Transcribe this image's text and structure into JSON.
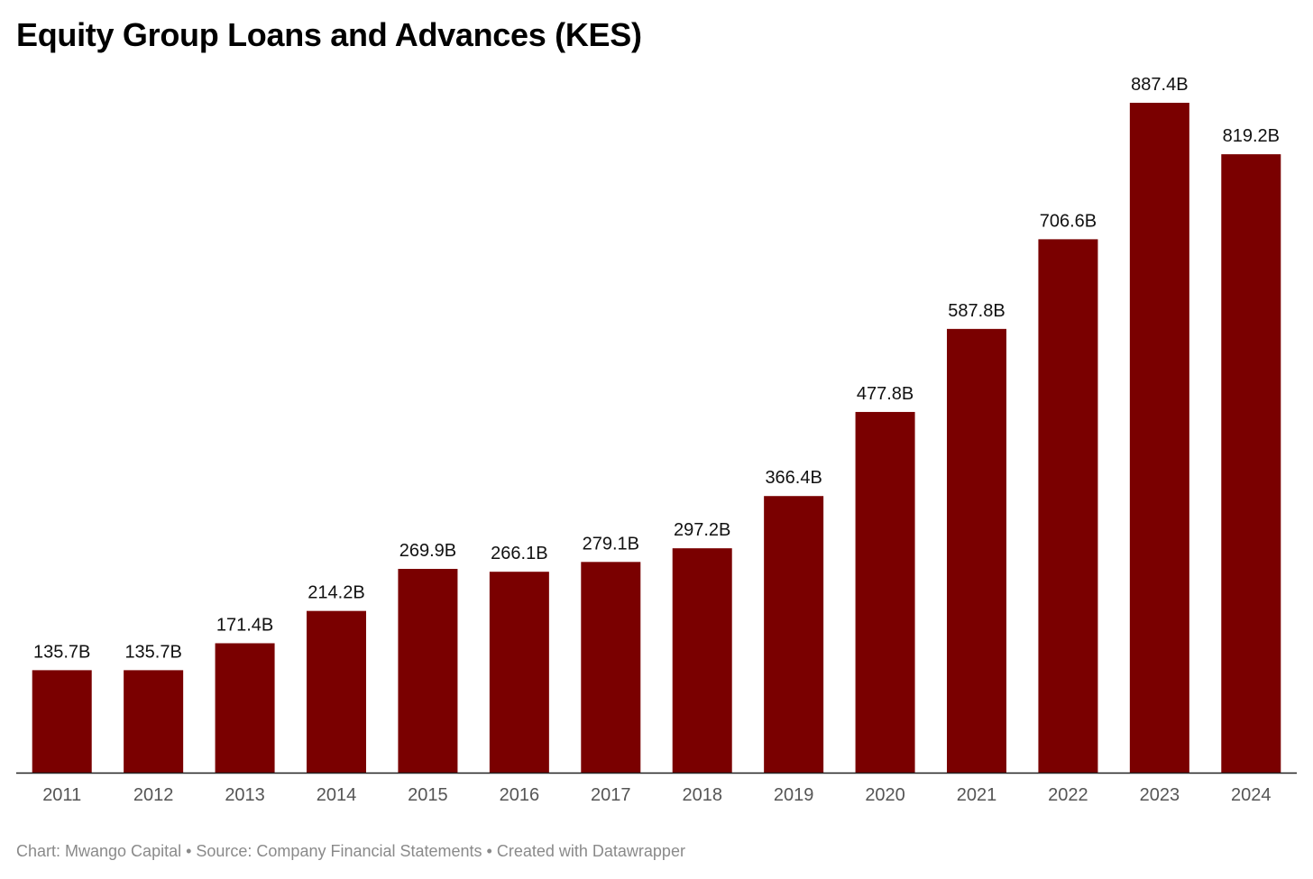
{
  "chart": {
    "title": "Equity Group Loans and Advances (KES)",
    "footer": "Chart: Mwango Capital • Source: Company Financial Statements • Created with Datawrapper"
  },
  "colors": {
    "bar": "#7a0000",
    "axis": "#222222",
    "value_label": "#111111",
    "tick_label": "#555555",
    "footer": "#8a8a8a"
  },
  "chart_data": {
    "type": "bar",
    "title": "Equity Group Loans and Advances (KES)",
    "xlabel": "",
    "ylabel": "",
    "categories": [
      "2011",
      "2012",
      "2013",
      "2014",
      "2015",
      "2016",
      "2017",
      "2018",
      "2019",
      "2020",
      "2021",
      "2022",
      "2023",
      "2024"
    ],
    "values": [
      135.7,
      135.7,
      171.4,
      214.2,
      269.9,
      266.1,
      279.1,
      297.2,
      366.4,
      477.8,
      587.8,
      706.6,
      887.4,
      819.2
    ],
    "data_labels": [
      "135.7B",
      "135.7B",
      "171.4B",
      "214.2B",
      "269.9B",
      "266.1B",
      "279.1B",
      "297.2B",
      "366.4B",
      "477.8B",
      "587.8B",
      "706.6B",
      "887.4B",
      "819.2B"
    ],
    "unit": "B",
    "ylim": [
      0,
      887.4
    ],
    "grid": false,
    "legend": "none"
  }
}
